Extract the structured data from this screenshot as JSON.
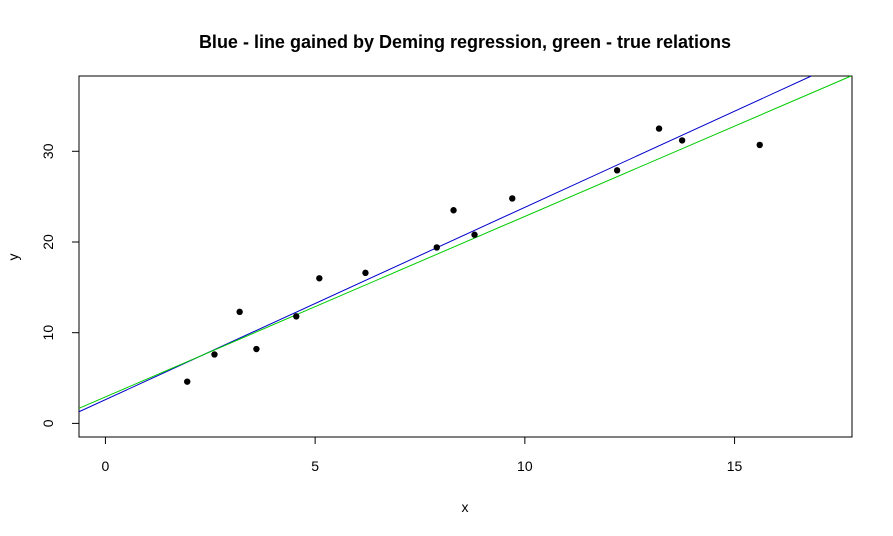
{
  "chart_data": {
    "type": "scatter",
    "title": "Blue - line gained by Deming regression, green - true relations",
    "xlabel": "x",
    "ylabel": "y",
    "xlim": [
      -0.63,
      17.8
    ],
    "ylim": [
      -1.5,
      38.3
    ],
    "x_ticks": [
      0,
      5,
      10,
      15
    ],
    "x_tick_labels": [
      "0",
      "5",
      "10",
      "15"
    ],
    "y_ticks": [
      0,
      10,
      20,
      30
    ],
    "y_tick_labels": [
      "0",
      "10",
      "20",
      "30"
    ],
    "grid": false,
    "points": [
      {
        "x": 1.95,
        "y": 4.6
      },
      {
        "x": 2.6,
        "y": 7.6
      },
      {
        "x": 3.2,
        "y": 12.3
      },
      {
        "x": 3.6,
        "y": 8.2
      },
      {
        "x": 4.55,
        "y": 11.8
      },
      {
        "x": 5.1,
        "y": 16.0
      },
      {
        "x": 6.2,
        "y": 16.6
      },
      {
        "x": 7.9,
        "y": 19.4
      },
      {
        "x": 8.3,
        "y": 23.5
      },
      {
        "x": 8.8,
        "y": 20.8
      },
      {
        "x": 9.7,
        "y": 24.8
      },
      {
        "x": 12.2,
        "y": 27.9
      },
      {
        "x": 13.2,
        "y": 32.5
      },
      {
        "x": 13.75,
        "y": 31.2
      },
      {
        "x": 15.6,
        "y": 30.7
      }
    ],
    "lines": [
      {
        "color": "#0000cc",
        "intercept": 2.62,
        "slope": 2.12
      },
      {
        "color": "#00cc00",
        "intercept": 2.92,
        "slope": 1.99
      }
    ],
    "point_color": "#000000"
  }
}
